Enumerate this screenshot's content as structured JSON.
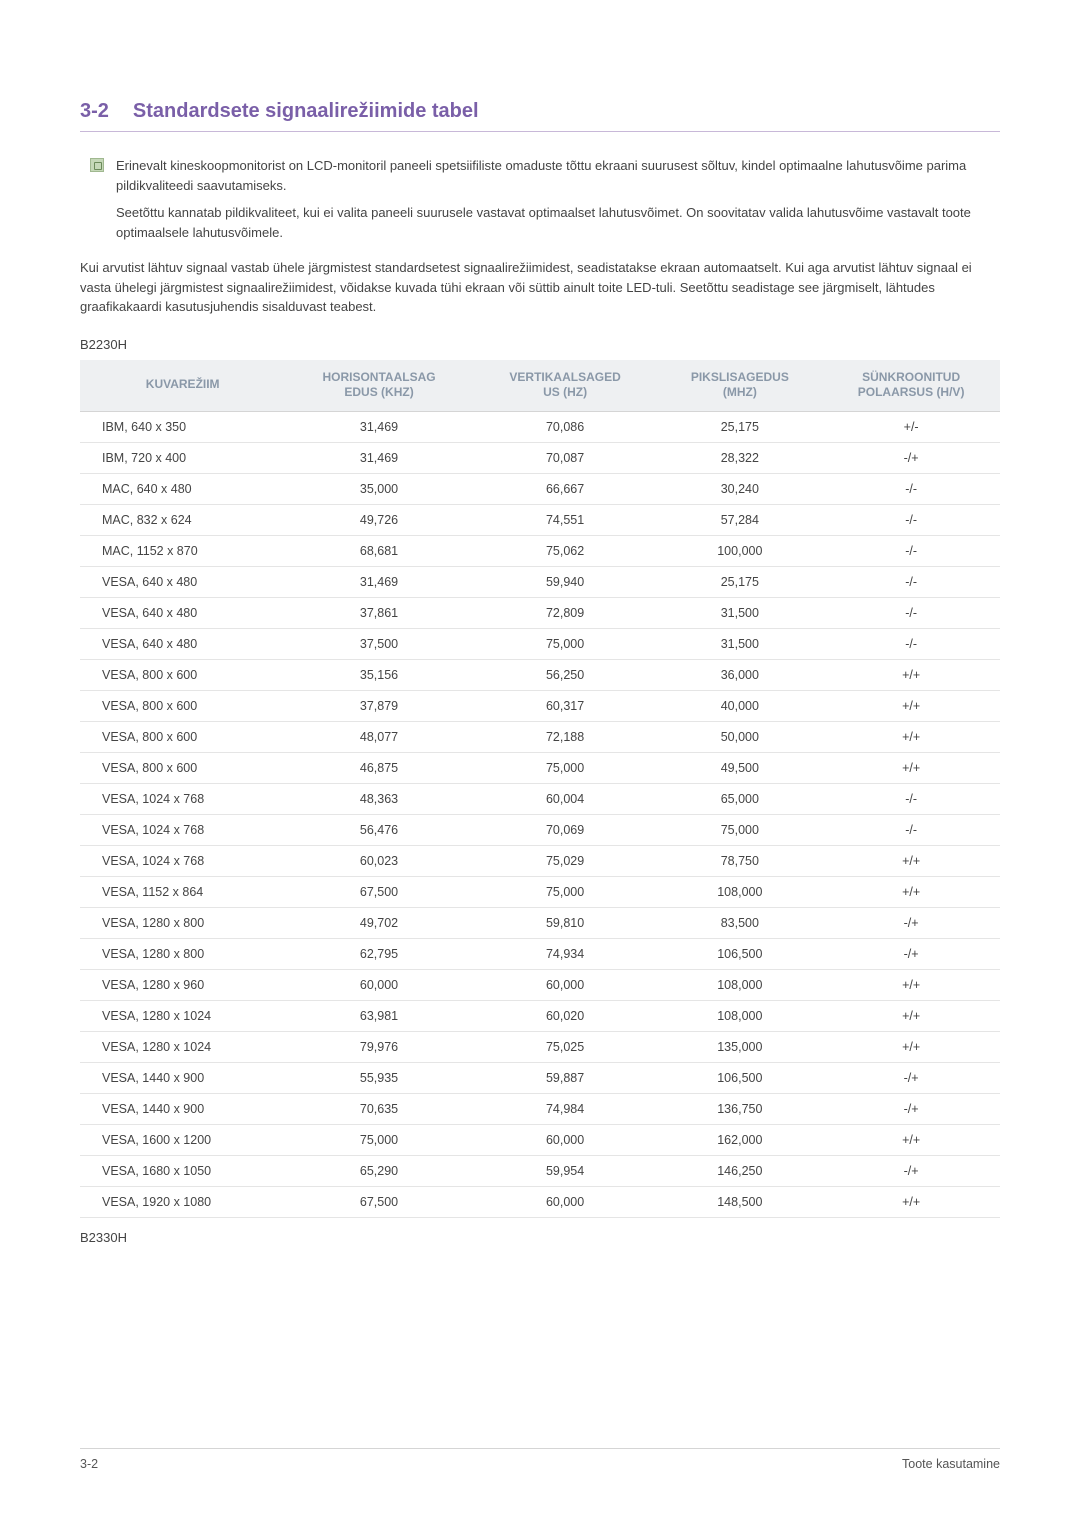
{
  "section": {
    "number": "3-2",
    "title": "Standardsete signaalirežiimide tabel"
  },
  "notes": {
    "para1": "Erinevalt kineskoopmonitorist on LCD-monitoril paneeli spetsiifiliste omaduste tõttu ekraani suurusest sõltuv, kindel optimaalne lahutusvõime parima pildikvaliteedi saavutamiseks.",
    "para2": "Seetõttu kannatab pildikvaliteet, kui ei valita paneeli suurusele vastavat optimaalset lahutusvõimet. On soovitatav valida lahutusvõime vastavalt toote optimaalsele lahutusvõimele."
  },
  "body_para": "Kui arvutist lähtuv signaal vastab ühele järgmistest standardsetest signaalirežiimidest, seadistatakse ekraan automaatselt. Kui aga arvutist lähtuv signaal ei vasta ühelegi järgmistest signaalirežiimidest, võidakse kuvada tühi ekraan või süttib ainult toite LED-tuli. Seetõttu seadistage see järgmiselt, lähtudes graafikakaardi kasutusjuhendis sisalduvast teabest.",
  "model_top": "B2230H",
  "model_bottom": "B2330H",
  "columns": {
    "c1_a": "KUVAREŽIIM",
    "c2_a": "HORISONTAALSAG",
    "c2_b": "EDUS (KHZ)",
    "c3_a": "VERTIKAALSAGED",
    "c3_b": "US (HZ)",
    "c4_a": "PIKSLISAGEDUS",
    "c4_b": "(MHZ)",
    "c5_a": "SÜNKROONITUD",
    "c5_b": "POLAARSUS (H/V)"
  },
  "rows": [
    {
      "mode": "IBM, 640 x 350",
      "h": "31,469",
      "v": "70,086",
      "p": "25,175",
      "s": "+/-"
    },
    {
      "mode": "IBM, 720 x 400",
      "h": "31,469",
      "v": "70,087",
      "p": "28,322",
      "s": "-/+"
    },
    {
      "mode": "MAC, 640 x 480",
      "h": "35,000",
      "v": "66,667",
      "p": "30,240",
      "s": "-/-"
    },
    {
      "mode": "MAC, 832 x 624",
      "h": "49,726",
      "v": "74,551",
      "p": "57,284",
      "s": "-/-"
    },
    {
      "mode": "MAC, 1152 x 870",
      "h": "68,681",
      "v": "75,062",
      "p": "100,000",
      "s": "-/-"
    },
    {
      "mode": "VESA, 640 x 480",
      "h": "31,469",
      "v": "59,940",
      "p": "25,175",
      "s": "-/-"
    },
    {
      "mode": "VESA, 640 x 480",
      "h": "37,861",
      "v": "72,809",
      "p": "31,500",
      "s": "-/-"
    },
    {
      "mode": "VESA, 640 x 480",
      "h": "37,500",
      "v": "75,000",
      "p": "31,500",
      "s": "-/-"
    },
    {
      "mode": "VESA, 800 x 600",
      "h": "35,156",
      "v": "56,250",
      "p": "36,000",
      "s": "+/+"
    },
    {
      "mode": "VESA, 800 x 600",
      "h": "37,879",
      "v": "60,317",
      "p": "40,000",
      "s": "+/+"
    },
    {
      "mode": "VESA, 800 x 600",
      "h": "48,077",
      "v": "72,188",
      "p": "50,000",
      "s": "+/+"
    },
    {
      "mode": "VESA, 800 x 600",
      "h": "46,875",
      "v": "75,000",
      "p": "49,500",
      "s": "+/+"
    },
    {
      "mode": "VESA, 1024 x 768",
      "h": "48,363",
      "v": "60,004",
      "p": "65,000",
      "s": "-/-"
    },
    {
      "mode": "VESA, 1024 x 768",
      "h": "56,476",
      "v": "70,069",
      "p": "75,000",
      "s": "-/-"
    },
    {
      "mode": "VESA, 1024 x 768",
      "h": "60,023",
      "v": "75,029",
      "p": "78,750",
      "s": "+/+"
    },
    {
      "mode": "VESA, 1152 x 864",
      "h": "67,500",
      "v": "75,000",
      "p": "108,000",
      "s": "+/+"
    },
    {
      "mode": "VESA, 1280 x 800",
      "h": "49,702",
      "v": "59,810",
      "p": "83,500",
      "s": "-/+"
    },
    {
      "mode": "VESA, 1280 x 800",
      "h": "62,795",
      "v": "74,934",
      "p": "106,500",
      "s": "-/+"
    },
    {
      "mode": "VESA, 1280 x 960",
      "h": "60,000",
      "v": "60,000",
      "p": "108,000",
      "s": "+/+"
    },
    {
      "mode": "VESA, 1280 x 1024",
      "h": "63,981",
      "v": "60,020",
      "p": "108,000",
      "s": "+/+"
    },
    {
      "mode": "VESA, 1280 x 1024",
      "h": "79,976",
      "v": "75,025",
      "p": "135,000",
      "s": "+/+"
    },
    {
      "mode": "VESA, 1440 x 900",
      "h": "55,935",
      "v": "59,887",
      "p": "106,500",
      "s": "-/+"
    },
    {
      "mode": "VESA, 1440 x 900",
      "h": "70,635",
      "v": "74,984",
      "p": "136,750",
      "s": "-/+"
    },
    {
      "mode": "VESA, 1600 x 1200",
      "h": "75,000",
      "v": "60,000",
      "p": "162,000",
      "s": "+/+"
    },
    {
      "mode": "VESA, 1680 x 1050",
      "h": "65,290",
      "v": "59,954",
      "p": "146,250",
      "s": "-/+"
    },
    {
      "mode": "VESA, 1920 x 1080",
      "h": "67,500",
      "v": "60,000",
      "p": "148,500",
      "s": "+/+"
    }
  ],
  "footer": {
    "left": "3-2",
    "right": "Toote kasutamine"
  },
  "colors": {
    "heading": "#7a5fa8",
    "header_bg": "#eef0f2",
    "header_text": "#8a98a8",
    "border": "#d5d5d5",
    "row_border": "#e5e5e5",
    "body_text": "#444444"
  },
  "table_layout": {
    "col_widths_pct": [
      20,
      20,
      20,
      20,
      20
    ]
  }
}
